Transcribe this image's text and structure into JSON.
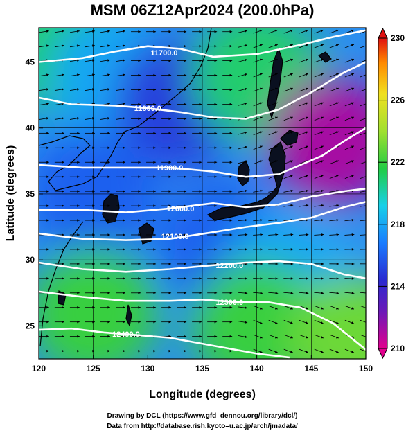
{
  "chart_data": {
    "type": "heatmap",
    "title": "MSM 06Z12Apr2024 (200.0hPa)",
    "xlabel": "Longitude (degrees)",
    "ylabel": "Latitude  (degrees)",
    "xlim": [
      120,
      150
    ],
    "ylim": [
      22.5,
      47.6
    ],
    "x_ticks": [
      "120",
      "125",
      "130",
      "135",
      "140",
      "145",
      "150"
    ],
    "y_ticks": [
      "25",
      "30",
      "35",
      "40",
      "45"
    ],
    "colorbar": {
      "min": 210,
      "max": 230,
      "ticks": [
        "210",
        "214",
        "218",
        "222",
        "226",
        "230"
      ],
      "colors": [
        "#e2008e",
        "#2a2ad0",
        "#1aa0ff",
        "#18e0d8",
        "#22cc44",
        "#c8ee30",
        "#ff9a00",
        "#e01010"
      ]
    },
    "field_samples": [
      {
        "lon": 122,
        "lat": 46,
        "value": 221
      },
      {
        "lon": 127,
        "lat": 44,
        "value": 218
      },
      {
        "lon": 133,
        "lat": 42,
        "value": 215
      },
      {
        "lon": 140,
        "lat": 44,
        "value": 221
      },
      {
        "lon": 147,
        "lat": 39,
        "value": 211
      },
      {
        "lon": 125,
        "lat": 35,
        "value": 216
      },
      {
        "lon": 137,
        "lat": 31,
        "value": 216
      },
      {
        "lon": 143,
        "lat": 29,
        "value": 218
      },
      {
        "lon": 125,
        "lat": 26,
        "value": 222
      },
      {
        "lon": 140,
        "lat": 25,
        "value": 222
      },
      {
        "lon": 149,
        "lat": 24,
        "value": 223
      }
    ],
    "contours": [
      {
        "label": "11700.0",
        "label_lon": 131.5,
        "label_lat": 45.7,
        "points": [
          [
            120,
            45.0
          ],
          [
            124,
            45.3
          ],
          [
            127,
            45.8
          ],
          [
            130,
            46.2
          ],
          [
            133,
            46.0
          ],
          [
            136,
            45.4
          ],
          [
            140,
            45.6
          ],
          [
            144,
            46.3
          ],
          [
            147,
            46.9
          ],
          [
            150,
            47.4
          ]
        ]
      },
      {
        "label": "11800.0",
        "label_lon": 130.0,
        "label_lat": 41.5,
        "points": [
          [
            120,
            42.3
          ],
          [
            123,
            41.8
          ],
          [
            127,
            41.7
          ],
          [
            130,
            41.5
          ],
          [
            133,
            41.2
          ],
          [
            136,
            40.8
          ],
          [
            139,
            40.7
          ],
          [
            142,
            41.4
          ],
          [
            145,
            42.7
          ],
          [
            148,
            44.2
          ],
          [
            150,
            45.0
          ]
        ]
      },
      {
        "label": "11900.0",
        "label_lon": 132.0,
        "label_lat": 37.0,
        "points": [
          [
            120,
            37.2
          ],
          [
            124,
            37.0
          ],
          [
            128,
            37.0
          ],
          [
            132,
            37.0
          ],
          [
            136,
            36.7
          ],
          [
            139,
            36.3
          ],
          [
            142,
            36.5
          ],
          [
            144,
            37.2
          ],
          [
            146,
            37.9
          ],
          [
            148,
            39.0
          ],
          [
            150,
            40.0
          ]
        ]
      },
      {
        "label": "12000.0",
        "label_lon": 133.0,
        "label_lat": 33.9,
        "points": [
          [
            120,
            33.8
          ],
          [
            124,
            33.8
          ],
          [
            128,
            33.6
          ],
          [
            132,
            33.9
          ],
          [
            136,
            34.3
          ],
          [
            139,
            34.0
          ],
          [
            142,
            34.2
          ],
          [
            145,
            34.8
          ],
          [
            148,
            35.2
          ],
          [
            150,
            35.4
          ]
        ]
      },
      {
        "label": "12100.0",
        "label_lon": 132.5,
        "label_lat": 31.8,
        "points": [
          [
            120,
            32.0
          ],
          [
            124,
            31.6
          ],
          [
            128,
            31.5
          ],
          [
            132,
            31.6
          ],
          [
            136,
            32.1
          ],
          [
            139,
            32.5
          ],
          [
            142,
            32.8
          ],
          [
            145,
            33.2
          ],
          [
            148,
            34.0
          ],
          [
            150,
            34.4
          ]
        ]
      },
      {
        "label": "12200.0",
        "label_lon": 137.5,
        "label_lat": 29.6,
        "points": [
          [
            120,
            29.8
          ],
          [
            124,
            29.3
          ],
          [
            128,
            29.1
          ],
          [
            132,
            29.3
          ],
          [
            136,
            29.6
          ],
          [
            139,
            29.8
          ],
          [
            142,
            29.9
          ],
          [
            145,
            29.7
          ],
          [
            148,
            28.9
          ],
          [
            150,
            28.6
          ]
        ]
      },
      {
        "label": "12300.0",
        "label_lon": 137.5,
        "label_lat": 26.8,
        "points": [
          [
            120,
            27.6
          ],
          [
            124,
            27.2
          ],
          [
            128,
            26.9
          ],
          [
            132,
            26.9
          ],
          [
            135,
            27.0
          ],
          [
            138,
            26.8
          ],
          [
            141,
            26.8
          ],
          [
            144,
            26.4
          ],
          [
            147,
            25.2
          ],
          [
            150,
            23.2
          ]
        ]
      },
      {
        "label": "12400.0",
        "label_lon": 128.0,
        "label_lat": 24.4,
        "points": [
          [
            120,
            24.7
          ],
          [
            123,
            24.8
          ],
          [
            126,
            24.5
          ],
          [
            129,
            24.3
          ],
          [
            132,
            24.1
          ],
          [
            136,
            23.5
          ],
          [
            140,
            22.9
          ],
          [
            143,
            22.6
          ]
        ]
      }
    ],
    "wind_note": "",
    "grid": true
  },
  "credits": {
    "line1": "Drawing by DCL (https://www.gfd–dennou.org/library/dcl/)",
    "line2": "Data from http://database.rish.kyoto–u.ac.jp/arch/jmadata/"
  }
}
